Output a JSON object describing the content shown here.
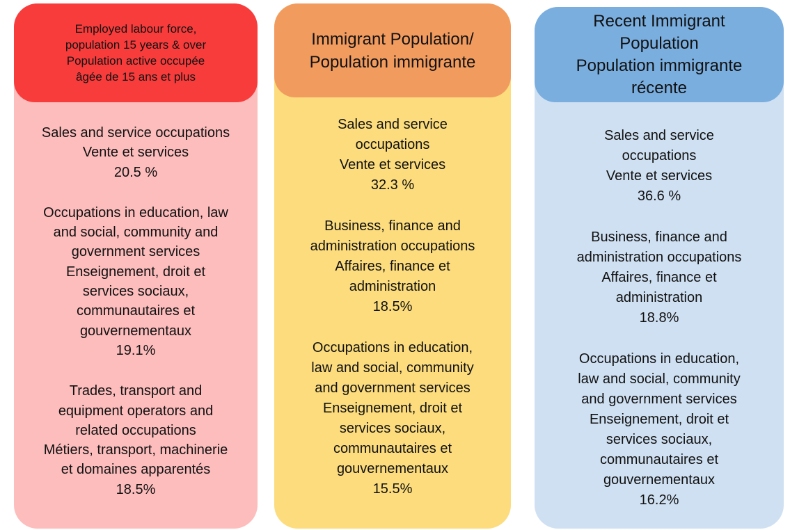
{
  "columns": [
    {
      "header": [
        "Employed labour force,",
        "population 15 years & over",
        "Population active occupée",
        "âgée de 15 ans et plus"
      ],
      "items": [
        [
          "Sales and service occupations",
          "Vente et services",
          "20.5 %"
        ],
        [
          "Occupations in education, law",
          "and social, community and",
          "government services",
          "Enseignement, droit et",
          "services sociaux,",
          "communautaires et",
          "gouvernementaux",
          "19.1%"
        ],
        [
          "Trades, transport and",
          "equipment operators and",
          "related occupations",
          "Métiers, transport, machinerie",
          "et domaines apparentés",
          "18.5%"
        ]
      ]
    },
    {
      "header": [
        "Immigrant Population/",
        "Population immigrante"
      ],
      "items": [
        [
          "Sales and service",
          "occupations",
          "Vente et services",
          "32.3 %"
        ],
        [
          "Business, finance and",
          "administration occupations",
          "Affaires, finance et",
          "administration",
          "18.5%"
        ],
        [
          "Occupations in education,",
          "law and social, community",
          "and government services",
          "Enseignement, droit et",
          "services sociaux,",
          "communautaires et",
          "gouvernementaux",
          "15.5%"
        ]
      ]
    },
    {
      "header": [
        "Recent Immigrant",
        "Population",
        "Population immigrante",
        "récente"
      ],
      "items": [
        [
          "Sales and service",
          "occupations",
          "Vente et services",
          "36.6 %"
        ],
        [
          "Business, finance and",
          "administration occupations",
          "Affaires, finance et",
          "administration",
          "18.8%"
        ],
        [
          "Occupations in education,",
          "law and social, community",
          "and government services",
          "Enseignement, droit et",
          "services sociaux,",
          "communautaires et",
          "gouvernementaux",
          "16.2%"
        ]
      ]
    }
  ]
}
